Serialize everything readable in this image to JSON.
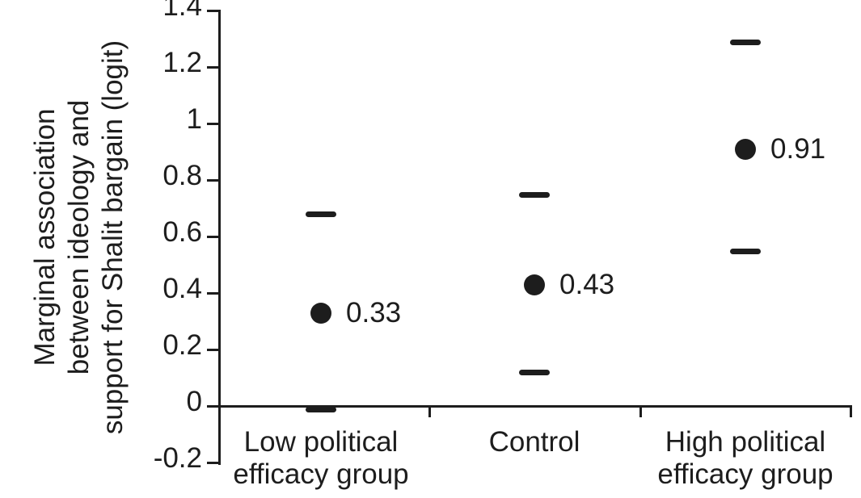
{
  "chart_data": {
    "type": "scatter",
    "title": "",
    "xlabel": "",
    "ylabel": "Marginal association between ideology and support for Shalit bargain (logit)",
    "ylabel_lines": [
      "Marginal association",
      "between ideology and",
      "support for Shalit bargain (logit)"
    ],
    "ylim": [
      -0.2,
      1.4
    ],
    "grid": false,
    "legend": "none",
    "marker_color": "#1d1d1d",
    "yticks": [
      {
        "value": 1.4,
        "label": "1.4"
      },
      {
        "value": 1.2,
        "label": "1.2"
      },
      {
        "value": 1.0,
        "label": "1"
      },
      {
        "value": 0.8,
        "label": "0.8"
      },
      {
        "value": 0.6,
        "label": "0.6"
      },
      {
        "value": 0.4,
        "label": "0.4"
      },
      {
        "value": 0.2,
        "label": "0.2"
      },
      {
        "value": 0.0,
        "label": "0"
      },
      {
        "value": -0.2,
        "label": "-0.2"
      }
    ],
    "categories": [
      "Low political efficacy group",
      "Control",
      "High political efficacy group"
    ],
    "points": [
      {
        "category": "Low political efficacy group",
        "category_lines": [
          "Low political",
          "efficacy group"
        ],
        "value": 0.33,
        "value_label": "0.33",
        "ci_low": -0.01,
        "ci_high": 0.68
      },
      {
        "category": "Control",
        "category_lines": [
          "Control"
        ],
        "value": 0.43,
        "value_label": "0.43",
        "ci_low": 0.12,
        "ci_high": 0.75
      },
      {
        "category": "High political efficacy group",
        "category_lines": [
          "High political",
          "efficacy group"
        ],
        "value": 0.91,
        "value_label": "0.91",
        "ci_low": 0.55,
        "ci_high": 1.29
      }
    ]
  }
}
